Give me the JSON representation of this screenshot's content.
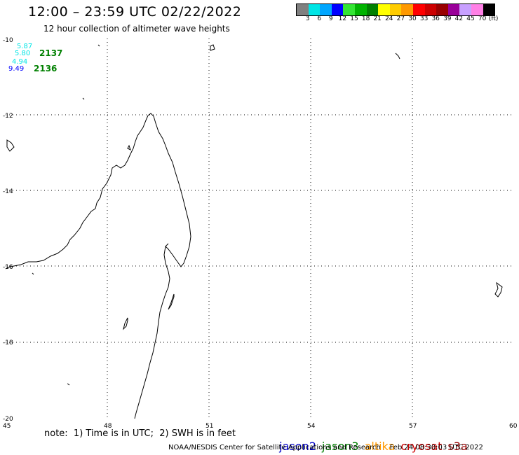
{
  "header": {
    "title": "12:00 – 23:59 UTC 02/22/2022",
    "subtitle": "12 hour collection of altimeter wave heights"
  },
  "legend": {
    "colors": [
      "#808080",
      "#00e5e5",
      "#00a6ff",
      "#0000ff",
      "#33e533",
      "#00b300",
      "#008000",
      "#ffff00",
      "#ffcc00",
      "#ff9900",
      "#ff0000",
      "#cc0000",
      "#990000",
      "#990099",
      "#c8a0ff",
      "#ff80e6",
      "#000000"
    ],
    "labels": [
      "3",
      "6",
      "9",
      "12",
      "15",
      "18",
      "21",
      "24",
      "27",
      "30",
      "33",
      "36",
      "39",
      "42",
      "45",
      "70"
    ],
    "unit": "(ft)"
  },
  "map": {
    "lon_range": [
      45,
      60
    ],
    "lat_range": [
      -20,
      -10
    ],
    "lon_ticks": [
      "45",
      "48",
      "51",
      "54",
      "57",
      "60"
    ],
    "lat_ticks": [
      "-10",
      "-12",
      "-14",
      "-16",
      "-18",
      "-20"
    ],
    "grid": "dotted"
  },
  "observations": [
    {
      "value": "5.87",
      "color": "#00e5e5"
    },
    {
      "value": "5.80",
      "color": "#00e5e5"
    },
    {
      "value": "4.94",
      "color": "#00e5e5"
    },
    {
      "value": "9.49",
      "color": "#0000ff"
    }
  ],
  "passes": [
    {
      "label": "2137",
      "color": "#008000"
    },
    {
      "label": "2136",
      "color": "#008000"
    }
  ],
  "footer": {
    "note": "note:  1) Time is in UTC;  2) SWH is in feet",
    "satellites": [
      {
        "name": "jason2",
        "color": "#0000cc"
      },
      {
        "name": "jason3",
        "color": "#008000"
      },
      {
        "name": "altika",
        "color": "#ff9900"
      },
      {
        "name": "cryosat",
        "color": "#cc0000"
      },
      {
        "name": "s3a",
        "color": "#990000"
      }
    ],
    "credit": "NOAA/NESDIS Center for Satellite Applications and Research    Feb 24 08:30:03 UTC 2022"
  }
}
